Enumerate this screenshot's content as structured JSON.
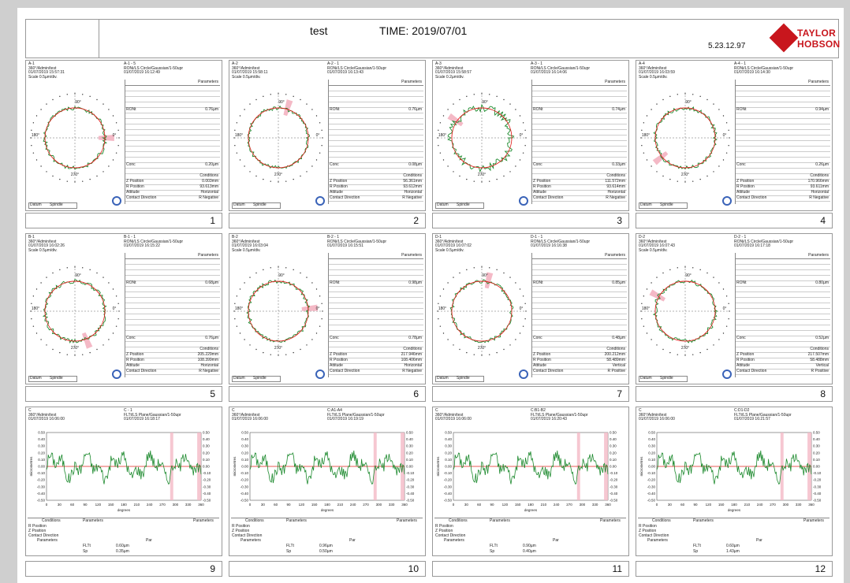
{
  "header": {
    "title": "test",
    "time": "TIME: 2019/07/01",
    "version": "5.23.12.97",
    "logo_line1": "TAYLOR",
    "logo_line2": "HOBSON"
  },
  "panels": [
    {
      "n": "1",
      "a": "A-1",
      "b": "360°/Admin/test",
      "c": "01/07/2019 15:57:31",
      "d": "A-1 - 5",
      "e": "RONi/LS Circle/Gaussian/1-50upr",
      "f": "01/07/2019 16:12:49",
      "scale": "Scale 0.5µm/div.",
      "param": "Parameters",
      "ronl": "RONt",
      "ronv": "0.76µm",
      "concl": "Conc",
      "concv": "0.20µm",
      "cond": "Conditions",
      "zl": "Z Position",
      "zv": "0.003mm",
      "rl": "R Position",
      "rv": "93.613mm",
      "al": "Attitude",
      "av": "Horizontal",
      "cl": "Contact Direction",
      "cv": "R Negative",
      "datum": "Datum",
      "spindle": "Spindle"
    },
    {
      "n": "2",
      "a": "A-2",
      "b": "360°/Admin/test",
      "c": "01/07/2019 15:58:11",
      "d": "A-2 - 1",
      "e": "RONi/LS Circle/Gaussian/1-50upr",
      "f": "01/07/2019 16:13:43",
      "scale": "Scale 0.5µm/div.",
      "param": "Parameters",
      "ronl": "RONt",
      "ronv": "0.76µm",
      "concl": "Conc",
      "concv": "0.08µm",
      "cond": "Conditions",
      "zl": "Z Position",
      "zv": "56.361mm",
      "rl": "R Position",
      "rv": "93.612mm",
      "al": "Attitude",
      "av": "Horizontal",
      "cl": "Contact Direction",
      "cv": "R Negative",
      "datum": "Datum",
      "spindle": "Spindle"
    },
    {
      "n": "3",
      "a": "A-3",
      "b": "360°/Admin/test",
      "c": "01/07/2019 15:58:57",
      "d": "A-3 - 1",
      "e": "RONi/LS Circle/Gaussian/1-50upr",
      "f": "01/07/2019 16:14:06",
      "scale": "Scale 0.2µm/div.",
      "param": "Parameters",
      "ronl": "RONt",
      "ronv": "0.74µm",
      "concl": "Conc",
      "concv": "0.33µm",
      "cond": "Conditions",
      "zl": "Z Position",
      "zv": "111.572mm",
      "rl": "R Position",
      "rv": "93.614mm",
      "al": "Attitude",
      "av": "Horizontal",
      "cl": "Contact Direction",
      "cv": "R Negative",
      "datum": "Datum",
      "spindle": "Spindle"
    },
    {
      "n": "4",
      "a": "A-4",
      "b": "360°/Admin/test",
      "c": "01/07/2019 16:03:59",
      "d": "A-4 - 1",
      "e": "RONi/LS Circle/Gaussian/1-50upr",
      "f": "01/07/2019 16:14:30",
      "scale": "Scale 0.5µm/div.",
      "param": "Parameters",
      "ronl": "RONt",
      "ronv": "0.94µm",
      "concl": "Conc",
      "concv": "0.26µm",
      "cond": "Conditions",
      "zl": "Z Position",
      "zv": "170.966mm",
      "rl": "R Position",
      "rv": "93.611mm",
      "al": "Attitude",
      "av": "Horizontal",
      "cl": "Contact Direction",
      "cv": "R Negative",
      "datum": "Datum",
      "spindle": "Spindle"
    },
    {
      "n": "5",
      "a": "B-1",
      "b": "360°/Admin/test",
      "c": "01/07/2019 16:02:26",
      "d": "B-1 - 1",
      "e": "RONi/LS Circle/Gaussian/1-50upr",
      "f": "01/07/2019 16:15:22",
      "scale": "Scale 0.5µm/div.",
      "param": "Parameters",
      "ronl": "RONt",
      "ronv": "0.68µm",
      "concl": "Conc",
      "concv": "0.76µm",
      "cond": "Conditions",
      "zl": "Z Position",
      "zv": "205.229mm",
      "rl": "R Position",
      "rv": "108.399mm",
      "al": "Attitude",
      "av": "Horizontal",
      "cl": "Contact Direction",
      "cv": "R Negative",
      "datum": "Datum",
      "spindle": "Spindle"
    },
    {
      "n": "6",
      "a": "B-2",
      "b": "360°/Admin/test",
      "c": "01/07/2019 16:03:04",
      "d": "B-2 - 1",
      "e": "RONi/LS Circle/Gaussian/1-50upr",
      "f": "01/07/2019 16:15:51",
      "scale": "Scale 0.5µm/div.",
      "param": "Parameters",
      "ronl": "RONt",
      "ronv": "0.98µm",
      "concl": "Conc",
      "concv": "0.78µm",
      "cond": "Conditions",
      "zl": "Z Position",
      "zv": "217.946mm",
      "rl": "R Position",
      "rv": "108.406mm",
      "al": "Attitude",
      "av": "Horizontal",
      "cl": "Contact Direction",
      "cv": "R Negative",
      "datum": "Datum",
      "spindle": "Spindle"
    },
    {
      "n": "7",
      "a": "D-1",
      "b": "360°/Admin/test",
      "c": "01/07/2019 16:07:02",
      "d": "D-1 - 1",
      "e": "RONi/LS Circle/Gaussian/1-50upr",
      "f": "01/07/2019 16:16:38",
      "scale": "Scale 0.5µm/div.",
      "param": "Parameters",
      "ronl": "RONt",
      "ronv": "0.85µm",
      "concl": "Conc",
      "concv": "0.48µm",
      "cond": "Conditions",
      "zl": "Z Position",
      "zv": "200.212mm",
      "rl": "R Position",
      "rv": "58.489mm",
      "al": "Attitude",
      "av": "Vertical",
      "cl": "Contact Direction",
      "cv": "R Positive",
      "datum": "Datum",
      "spindle": "Spindle"
    },
    {
      "n": "8",
      "a": "D-2",
      "b": "360°/Admin/test",
      "c": "01/07/2019 16:07:43",
      "d": "D-2 - 1",
      "e": "RONi/LS Circle/Gaussian/1-50upr",
      "f": "01/07/2019 16:17:18",
      "scale": "Scale 0.5µm/div.",
      "param": "Parameters",
      "ronl": "RONt",
      "ronv": "0.80µm",
      "concl": "Conc",
      "concv": "0.52µm",
      "cond": "Conditions",
      "zl": "Z Position",
      "zv": "217.507mm",
      "rl": "R Position",
      "rv": "58.488mm",
      "al": "Attitude",
      "av": "Vertical",
      "cl": "Contact Direction",
      "cv": "R Positive",
      "datum": "Datum",
      "spindle": "Spindle"
    }
  ],
  "planes": [
    {
      "n": "9",
      "a": "C",
      "b": "360°/Admin/test",
      "c": "01/07/2019 16:06:00",
      "d": "C - 1",
      "e": "FLTt/LS Plane/Gaussian/1-50upr",
      "f": "01/07/2019 16:18:17",
      "fltv": "0.60µm",
      "spv": "0.35µm"
    },
    {
      "n": "10",
      "a": "C",
      "b": "360°/Admin/test",
      "c": "01/07/2019 16:06:00",
      "d": "C:A1-A4",
      "e": "FLTt/LS Plane/Gaussian/1-50upr",
      "f": "01/07/2019 16:19:19",
      "fltv": "0.96µm",
      "spv": "0.50µm"
    },
    {
      "n": "11",
      "a": "C",
      "b": "360°/Admin/test",
      "c": "01/07/2019 16:06:00",
      "d": "C:B1-B2",
      "e": "FLTt/LS Plane/Gaussian/1-50upr",
      "f": "01/07/2019 16:20:43",
      "fltv": "0.90µm",
      "spv": "0.40µm"
    },
    {
      "n": "12",
      "a": "C",
      "b": "360°/Admin/test",
      "c": "01/07/2019 16:06:00",
      "d": "C:D1-D2",
      "e": "FLTt/LS Plane/Gaussian/1-50upr",
      "f": "01/07/2019 16:21:57",
      "fltv": "0.60µm",
      "spv": "1.43µm"
    }
  ],
  "plane_common": {
    "yticks": [
      "0.50",
      "0.40",
      "0.30",
      "0.20",
      "0.10",
      "0.00",
      "-0.10",
      "-0.20",
      "-0.30",
      "-0.40",
      "-0.50"
    ],
    "xticks": [
      "0",
      "30",
      "60",
      "90",
      "120",
      "150",
      "180",
      "210",
      "240",
      "270",
      "300",
      "330",
      "360"
    ],
    "xlabel": "degrees",
    "ylabel": "micrometres",
    "conditions": "Conditions",
    "parameters": "Parameters",
    "rpos": "R Position",
    "zpos": "Z Position",
    "contact": "Contact Direction",
    "flt": "FLTt",
    "sp": "Sp",
    "par": "Par"
  },
  "polar_labels": {
    "top": "90°",
    "left": "180°",
    "right": "0°",
    "bottom": "270°"
  },
  "colors": {
    "profile": "#1d8a2e",
    "reference": "#e0221f",
    "highlight": "#f4b9c6",
    "accent": "#c8161d"
  }
}
